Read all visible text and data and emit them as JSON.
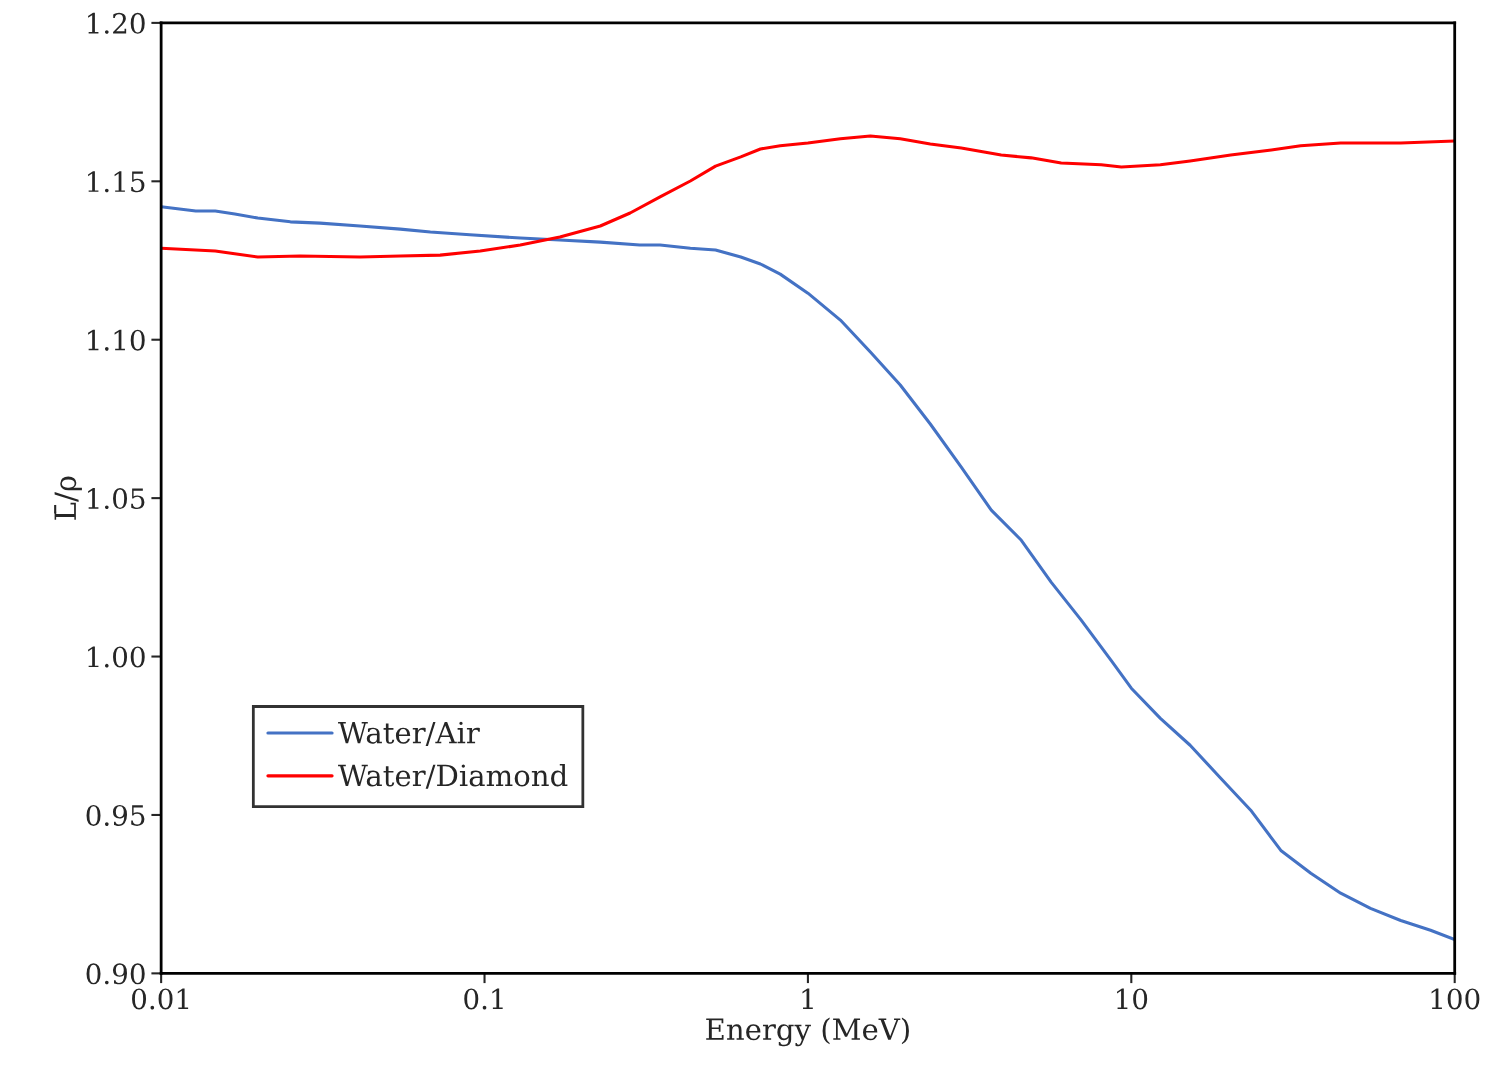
{
  "chart_data": {
    "type": "line",
    "xlabel": "Energy (MeV)",
    "ylabel": "L̄/ρ",
    "log": "x",
    "grid": false,
    "legend": "bottom left",
    "marker": "none",
    "line_style": "solid",
    "xlim": [
      0.01,
      100
    ],
    "xticks": [
      0.01,
      0.1,
      1,
      10,
      100
    ],
    "ylim": [
      0.9,
      1.2
    ],
    "yticks": [
      {
        "value": 0.9,
        "label": "0.90"
      },
      {
        "value": 0.95,
        "label": "0.95"
      },
      {
        "value": 1.0,
        "label": "1.00"
      },
      {
        "value": 1.05,
        "label": "1.05"
      },
      {
        "value": 1.1,
        "label": "1.10"
      },
      {
        "value": 1.15,
        "label": "1.15"
      },
      {
        "value": 1.2,
        "label": "1.20"
      }
    ],
    "series": [
      {
        "name": "Water/Air",
        "color": "#4472c4",
        "x": [
          0.01,
          0.0128,
          0.0147,
          0.0169,
          0.0199,
          0.0251,
          0.031,
          0.0412,
          0.0549,
          0.068,
          0.0901,
          0.129,
          0.171,
          0.228,
          0.302,
          0.349,
          0.433,
          0.518,
          0.62,
          0.713,
          0.821,
          1.0,
          1.26,
          1.56,
          1.93,
          2.39,
          2.98,
          3.69,
          4.57,
          5.65,
          7.0,
          8.66,
          10.0,
          12.3,
          15.2,
          18.9,
          23.4,
          29.0,
          35.9,
          44.4,
          54.9,
          68.1,
          84.2,
          100
        ],
        "values": [
          1.142,
          1.1406,
          1.1406,
          1.1397,
          1.1384,
          1.1372,
          1.1368,
          1.1359,
          1.1349,
          1.134,
          1.1331,
          1.1321,
          1.1315,
          1.1308,
          1.1299,
          1.1299,
          1.1289,
          1.1283,
          1.1261,
          1.1239,
          1.1207,
          1.1147,
          1.1062,
          1.0961,
          1.0857,
          1.0734,
          1.0598,
          1.0462,
          1.0367,
          1.0235,
          1.0115,
          0.9988,
          0.99,
          0.9805,
          0.972,
          0.9616,
          0.9515,
          0.9388,
          0.9316,
          0.9253,
          0.9205,
          0.9167,
          0.9136,
          0.9107
        ]
      },
      {
        "name": "Water/Diamond",
        "color": "#ff0000",
        "x": [
          0.01,
          0.0147,
          0.0199,
          0.0269,
          0.0412,
          0.0549,
          0.0729,
          0.097,
          0.129,
          0.171,
          0.228,
          0.282,
          0.349,
          0.433,
          0.518,
          0.62,
          0.713,
          0.821,
          1.0,
          1.26,
          1.56,
          1.93,
          2.39,
          2.98,
          3.96,
          4.9,
          6.07,
          8.07,
          9.32,
          12.3,
          15.2,
          20.3,
          27.1,
          33.4,
          44.4,
          68.1,
          100
        ],
        "values": [
          1.1289,
          1.128,
          1.1261,
          1.1264,
          1.1261,
          1.1264,
          1.1267,
          1.128,
          1.1299,
          1.1324,
          1.1359,
          1.14,
          1.1451,
          1.1501,
          1.1548,
          1.1577,
          1.1602,
          1.1612,
          1.1621,
          1.1634,
          1.1643,
          1.1634,
          1.1618,
          1.1605,
          1.1583,
          1.1574,
          1.1558,
          1.1552,
          1.1545,
          1.1552,
          1.1564,
          1.1583,
          1.1599,
          1.1612,
          1.1621,
          1.1621,
          1.1627
        ]
      }
    ]
  }
}
